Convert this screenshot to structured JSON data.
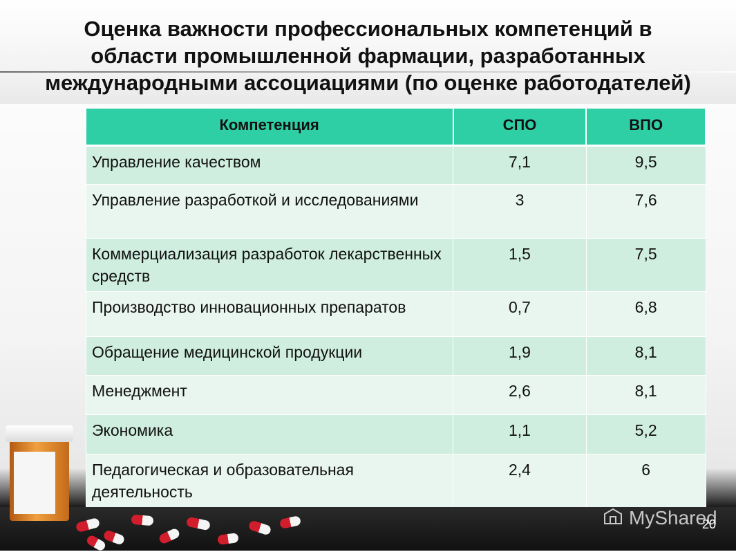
{
  "slide": {
    "title": "Оценка важности профессиональных компетенций в\nобласти промышленной фармации, разработанных\nмеждународными ассоциациями (по оценке работодателей)",
    "page_number": "20",
    "watermark": "MyShared"
  },
  "table": {
    "headers": [
      "Компетенция",
      "СПО",
      "ВПО"
    ],
    "rows": [
      {
        "competence": "Управление качеством",
        "spo": "7,1",
        "vpo": "9,5"
      },
      {
        "competence": "Управление разработкой и исследованиями",
        "spo": "3",
        "vpo": "7,6"
      },
      {
        "competence": "Коммерциализация разработок лекарственных средств",
        "spo": "1,5",
        "vpo": "7,5"
      },
      {
        "competence": "Производство инновационных препаратов",
        "spo": "0,7",
        "vpo": "6,8"
      },
      {
        "competence": "Обращение медицинской продукции",
        "spo": "1,9",
        "vpo": "8,1"
      },
      {
        "competence": "Менеджмент",
        "spo": "2,6",
        "vpo": "8,1"
      },
      {
        "competence": "Экономика",
        "spo": "1,1",
        "vpo": "5,2"
      },
      {
        "competence": "Педагогическая и образовательная деятельность",
        "spo": "2,4",
        "vpo": "6"
      }
    ]
  },
  "colors": {
    "header": "#2fcfa6",
    "row_odd": "#cfeee0",
    "row_even": "#e8f6ef"
  }
}
